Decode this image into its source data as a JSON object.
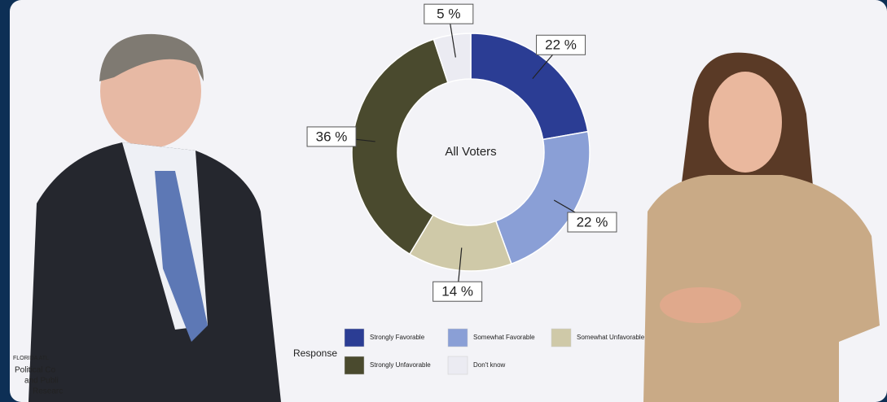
{
  "chart_data": {
    "type": "donut",
    "center_label": "All Voters",
    "legend_title": "Response",
    "categories": [
      "Strongly Favorable",
      "Somewhat Favorable",
      "Somewhat Unfavorable",
      "Strongly Unfavorable",
      "Don't know"
    ],
    "values": [
      22,
      22,
      14,
      36,
      5
    ],
    "value_labels": [
      "22 %",
      "22 %",
      "14 %",
      "36 %",
      "5 %"
    ],
    "colors": [
      "#2b3d94",
      "#8a9fd6",
      "#cfc9a8",
      "#4a4a2e",
      "#ebebf2"
    ],
    "legend_order": [
      0,
      1,
      2,
      3,
      4
    ]
  },
  "logo_text": [
    "FLORIDA ATL",
    "Political Co",
    "and Publi",
    "Researc"
  ]
}
